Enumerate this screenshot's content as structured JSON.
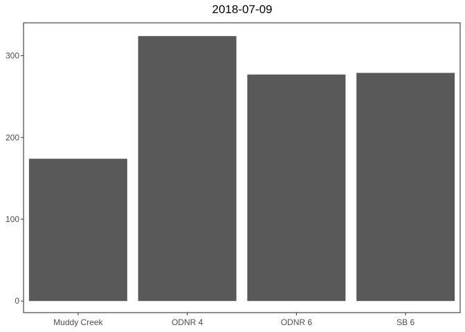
{
  "chart_data": {
    "type": "bar",
    "title": "2018-07-09",
    "xlabel": "",
    "ylabel": "",
    "categories": [
      "Muddy Creek",
      "ODNR 4",
      "ODNR 6",
      "SB 6"
    ],
    "values": [
      174,
      324,
      277,
      279
    ],
    "ylim": [
      -14.2,
      340.2
    ],
    "yticks": [
      0,
      100,
      200,
      300
    ],
    "grid": false,
    "legend": "none",
    "bar_color": "#595959",
    "axis_color": "#333333",
    "tick_label_color": "#4d4d4d"
  }
}
